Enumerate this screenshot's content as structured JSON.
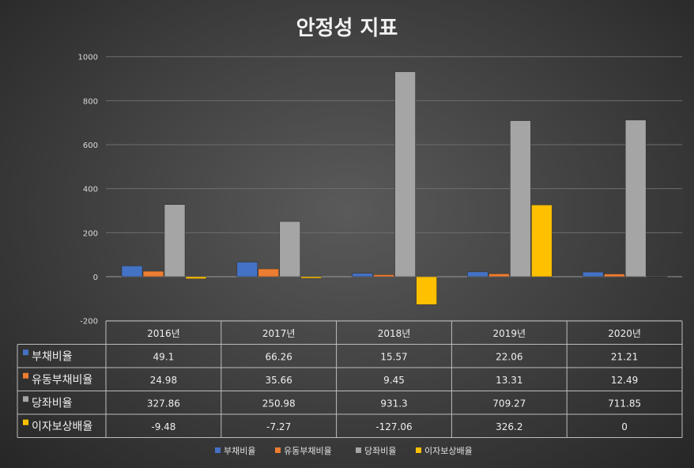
{
  "chart_data": {
    "type": "bar",
    "title": "안정성 지표",
    "categories": [
      "2016년",
      "2017년",
      "2018년",
      "2019년",
      "2020년"
    ],
    "series": [
      {
        "name": "부채비율",
        "color": "#4472c4",
        "values": [
          49.1,
          66.26,
          15.57,
          22.06,
          21.21
        ]
      },
      {
        "name": "유동부채비율",
        "color": "#ed7d31",
        "values": [
          24.98,
          35.66,
          9.45,
          13.31,
          12.49
        ]
      },
      {
        "name": "당좌비율",
        "color": "#a5a5a5",
        "values": [
          327.86,
          250.98,
          931.3,
          709.27,
          711.85
        ]
      },
      {
        "name": "이자보상배율",
        "color": "#ffc000",
        "values": [
          -9.48,
          -7.27,
          -127.06,
          326.2,
          0
        ]
      }
    ],
    "table_values": [
      [
        "49.1",
        "66.26",
        "15.57",
        "22.06",
        "21.21"
      ],
      [
        "24.98",
        "35.66",
        "9.45",
        "13.31",
        "12.49"
      ],
      [
        "327.86",
        "250.98",
        "931.3",
        "709.27",
        "711.85"
      ],
      [
        "-9.48",
        "-7.27",
        "-127.06",
        "326.2",
        "0"
      ]
    ],
    "ylim": [
      -200,
      1000
    ],
    "yticks": [
      -200,
      0,
      200,
      400,
      600,
      800,
      1000
    ],
    "grid": true,
    "legend_position": "bottom",
    "data_table": true
  }
}
